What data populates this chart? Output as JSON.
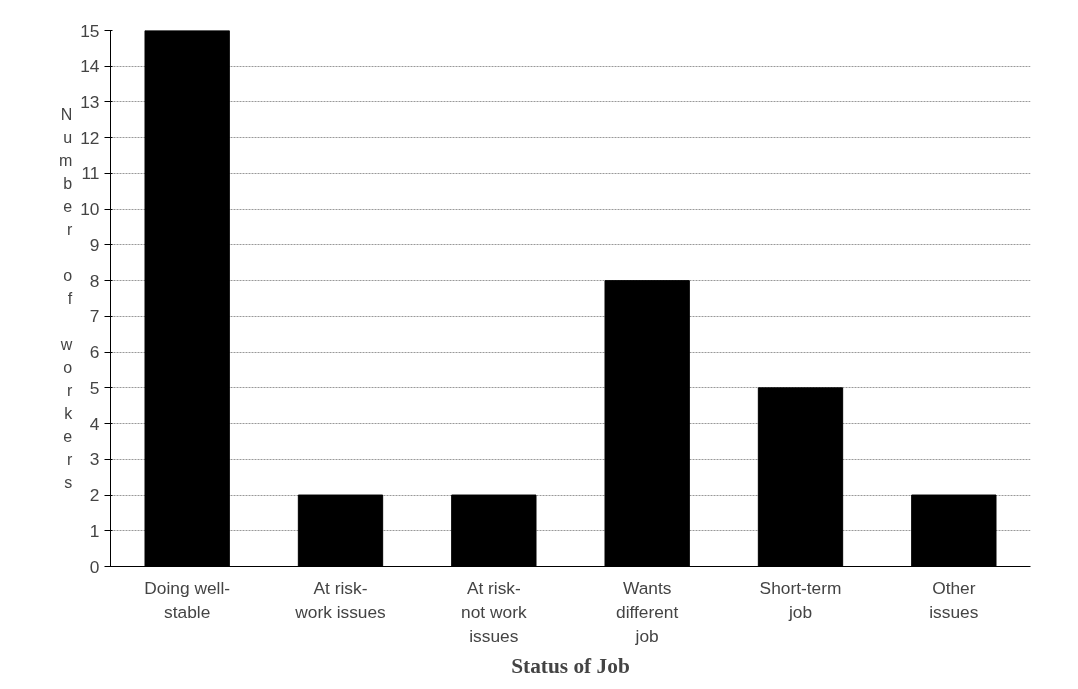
{
  "chart_data": {
    "type": "bar",
    "xlabel": "Status of Job",
    "ylabel": "Number of workers",
    "categories": [
      "Doing well-\nstable",
      "At risk-\nwork issues",
      "At risk-\nnot work\nissues",
      "Wants\ndifferent\njob",
      "Short-term\njob",
      "Other\nissues"
    ],
    "values": [
      15,
      2,
      2,
      8,
      5,
      2
    ],
    "color": "#000000",
    "ylim": [
      0,
      15
    ],
    "yticks": [
      0,
      1,
      2,
      3,
      4,
      5,
      6,
      7,
      8,
      9,
      10,
      11,
      12,
      13,
      14,
      15
    ],
    "grid": "y"
  }
}
